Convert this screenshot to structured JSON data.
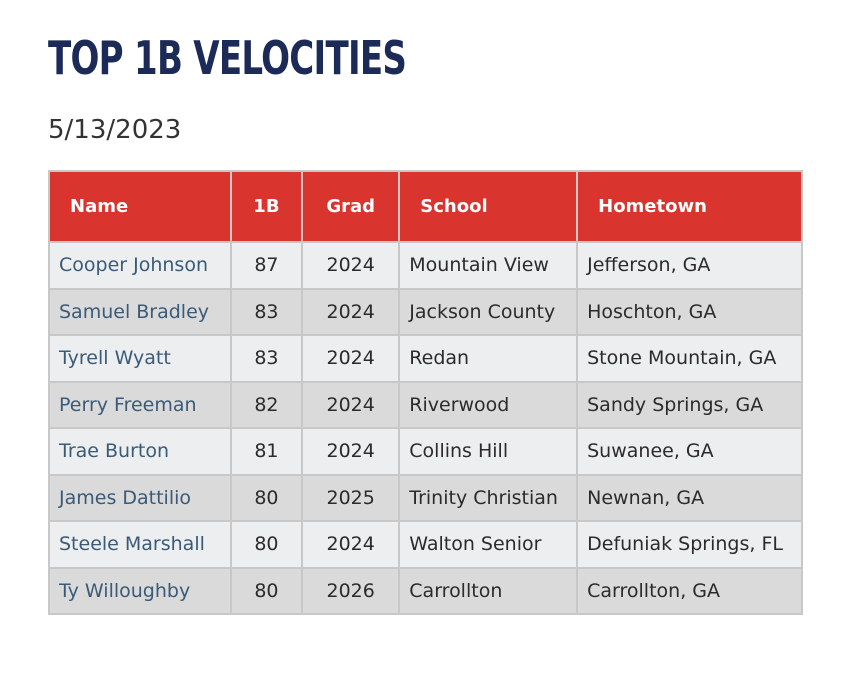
{
  "page": {
    "title": "TOP 1B VELOCITIES",
    "date": "5/13/2023"
  },
  "table": {
    "headers": [
      "Name",
      "1B",
      "Grad",
      "School",
      "Hometown"
    ],
    "rows": [
      {
        "name": "Cooper Johnson",
        "velo": "87",
        "grad": "2024",
        "school": "Mountain View",
        "hometown": "Jefferson, GA"
      },
      {
        "name": "Samuel Bradley",
        "velo": "83",
        "grad": "2024",
        "school": "Jackson County",
        "hometown": "Hoschton, GA"
      },
      {
        "name": "Tyrell Wyatt",
        "velo": "83",
        "grad": "2024",
        "school": "Redan",
        "hometown": "Stone Mountain, GA"
      },
      {
        "name": "Perry Freeman",
        "velo": "82",
        "grad": "2024",
        "school": "Riverwood",
        "hometown": "Sandy Springs, GA"
      },
      {
        "name": "Trae Burton",
        "velo": "81",
        "grad": "2024",
        "school": "Collins Hill",
        "hometown": "Suwanee, GA"
      },
      {
        "name": "James Dattilio",
        "velo": "80",
        "grad": "2025",
        "school": "Trinity Christian",
        "hometown": "Newnan, GA"
      },
      {
        "name": "Steele Marshall",
        "velo": "80",
        "grad": "2024",
        "school": "Walton Senior",
        "hometown": "Defuniak Springs, FL"
      },
      {
        "name": "Ty Willoughby",
        "velo": "80",
        "grad": "2026",
        "school": "Carrollton",
        "hometown": "Carrollton, GA"
      }
    ]
  },
  "colors": {
    "title": "#1b2a57",
    "header_bg": "#d9342e",
    "name_link": "#3a5a78"
  }
}
